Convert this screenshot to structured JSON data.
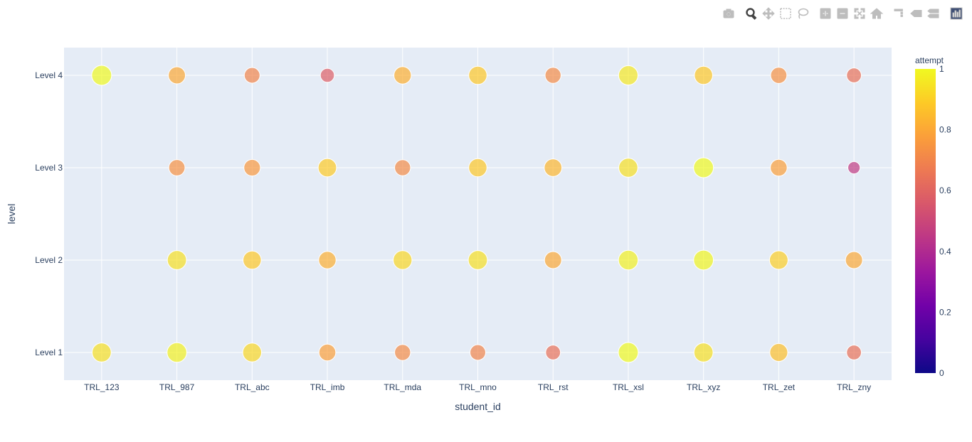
{
  "modebar": {
    "buttons": [
      {
        "name": "camera-icon",
        "active": false
      },
      {
        "name": "zoom-icon",
        "active": true
      },
      {
        "name": "pan-icon",
        "active": false
      },
      {
        "name": "box-select-icon",
        "active": false
      },
      {
        "name": "lasso-select-icon",
        "active": false
      },
      {
        "name": "zoom-in-icon",
        "active": false
      },
      {
        "name": "zoom-out-icon",
        "active": false
      },
      {
        "name": "autoscale-icon",
        "active": false
      },
      {
        "name": "home-icon",
        "active": false
      },
      {
        "name": "spike-lines-icon",
        "active": false
      },
      {
        "name": "hover-closest-icon",
        "active": false
      },
      {
        "name": "hover-compare-icon",
        "active": false
      },
      {
        "name": "plotly-logo-icon",
        "active": false
      }
    ]
  },
  "chart_data": {
    "type": "scatter",
    "xlabel": "student_id",
    "ylabel": "level",
    "categories_x": [
      "TRL_123",
      "TRL_987",
      "TRL_abc",
      "TRL_imb",
      "TRL_mda",
      "TRL_mno",
      "TRL_rst",
      "TRL_xsl",
      "TRL_xyz",
      "TRL_zet",
      "TRL_zny"
    ],
    "categories_y": [
      "Level 1",
      "Level 2",
      "Level 3",
      "Level 4"
    ],
    "colorbar": {
      "title": "attempt",
      "range": [
        0,
        1
      ],
      "ticks": [
        "0",
        "0.2",
        "0.4",
        "0.6",
        "0.8",
        "1"
      ]
    },
    "colorscale": [
      "#0d0887",
      "#46039f",
      "#7201a8",
      "#9c179e",
      "#bd3786",
      "#d8576b",
      "#ed7953",
      "#fb9f3a",
      "#fdca26",
      "#f0f921"
    ],
    "points": [
      {
        "x": "TRL_123",
        "y": "Level 4",
        "attempt": 1.0
      },
      {
        "x": "TRL_123",
        "y": "Level 1",
        "attempt": 0.94
      },
      {
        "x": "TRL_987",
        "y": "Level 4",
        "attempt": 0.8
      },
      {
        "x": "TRL_987",
        "y": "Level 3",
        "attempt": 0.74
      },
      {
        "x": "TRL_987",
        "y": "Level 2",
        "attempt": 0.94
      },
      {
        "x": "TRL_987",
        "y": "Level 1",
        "attempt": 0.98
      },
      {
        "x": "TRL_abc",
        "y": "Level 4",
        "attempt": 0.7
      },
      {
        "x": "TRL_abc",
        "y": "Level 3",
        "attempt": 0.76
      },
      {
        "x": "TRL_abc",
        "y": "Level 2",
        "attempt": 0.88
      },
      {
        "x": "TRL_abc",
        "y": "Level 1",
        "attempt": 0.92
      },
      {
        "x": "TRL_imb",
        "y": "Level 4",
        "attempt": 0.58
      },
      {
        "x": "TRL_imb",
        "y": "Level 3",
        "attempt": 0.89
      },
      {
        "x": "TRL_imb",
        "y": "Level 2",
        "attempt": 0.82
      },
      {
        "x": "TRL_imb",
        "y": "Level 1",
        "attempt": 0.78
      },
      {
        "x": "TRL_mda",
        "y": "Level 4",
        "attempt": 0.82
      },
      {
        "x": "TRL_mda",
        "y": "Level 3",
        "attempt": 0.72
      },
      {
        "x": "TRL_mda",
        "y": "Level 2",
        "attempt": 0.92
      },
      {
        "x": "TRL_mda",
        "y": "Level 1",
        "attempt": 0.72
      },
      {
        "x": "TRL_mno",
        "y": "Level 4",
        "attempt": 0.88
      },
      {
        "x": "TRL_mno",
        "y": "Level 3",
        "attempt": 0.88
      },
      {
        "x": "TRL_mno",
        "y": "Level 2",
        "attempt": 0.94
      },
      {
        "x": "TRL_mno",
        "y": "Level 1",
        "attempt": 0.7
      },
      {
        "x": "TRL_rst",
        "y": "Level 4",
        "attempt": 0.72
      },
      {
        "x": "TRL_rst",
        "y": "Level 3",
        "attempt": 0.84
      },
      {
        "x": "TRL_rst",
        "y": "Level 2",
        "attempt": 0.8
      },
      {
        "x": "TRL_rst",
        "y": "Level 1",
        "attempt": 0.64
      },
      {
        "x": "TRL_xsl",
        "y": "Level 4",
        "attempt": 0.96
      },
      {
        "x": "TRL_xsl",
        "y": "Level 3",
        "attempt": 0.94
      },
      {
        "x": "TRL_xsl",
        "y": "Level 2",
        "attempt": 0.98
      },
      {
        "x": "TRL_xsl",
        "y": "Level 1",
        "attempt": 1.0
      },
      {
        "x": "TRL_xyz",
        "y": "Level 4",
        "attempt": 0.88
      },
      {
        "x": "TRL_xyz",
        "y": "Level 3",
        "attempt": 1.0
      },
      {
        "x": "TRL_xyz",
        "y": "Level 2",
        "attempt": 0.99
      },
      {
        "x": "TRL_xyz",
        "y": "Level 1",
        "attempt": 0.94
      },
      {
        "x": "TRL_zet",
        "y": "Level 4",
        "attempt": 0.74
      },
      {
        "x": "TRL_zet",
        "y": "Level 3",
        "attempt": 0.78
      },
      {
        "x": "TRL_zet",
        "y": "Level 2",
        "attempt": 0.9
      },
      {
        "x": "TRL_zet",
        "y": "Level 1",
        "attempt": 0.86
      },
      {
        "x": "TRL_zny",
        "y": "Level 4",
        "attempt": 0.64
      },
      {
        "x": "TRL_zny",
        "y": "Level 3",
        "attempt": 0.46
      },
      {
        "x": "TRL_zny",
        "y": "Level 2",
        "attempt": 0.8
      },
      {
        "x": "TRL_zny",
        "y": "Level 1",
        "attempt": 0.64
      }
    ],
    "plot_bgcolor": "#e5ecf6",
    "grid": true
  }
}
